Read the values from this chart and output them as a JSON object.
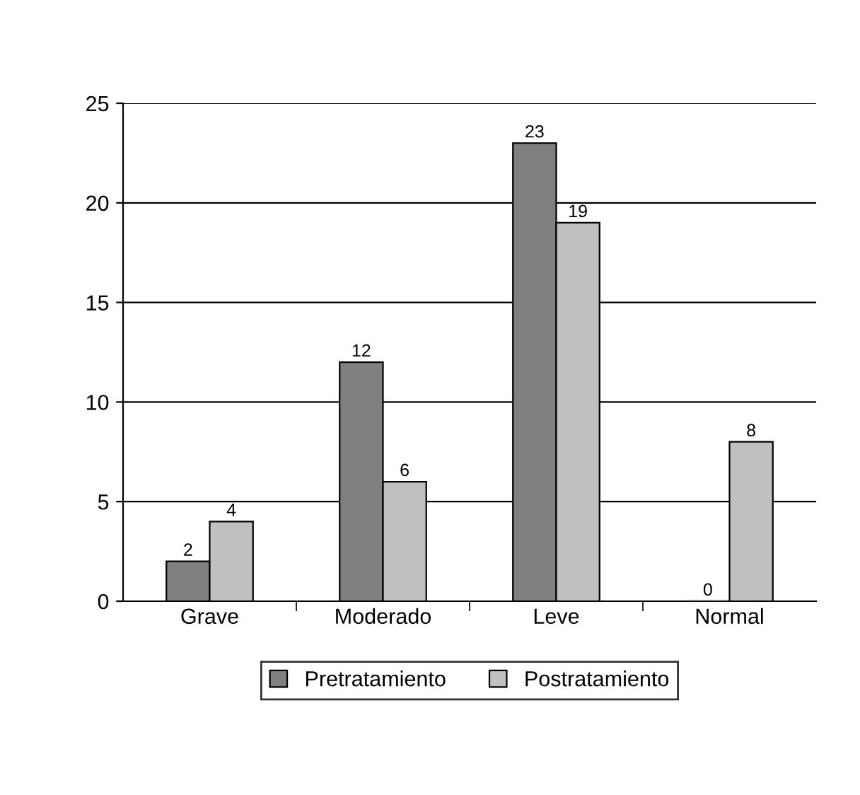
{
  "chart_data": {
    "type": "bar",
    "categories": [
      "Grave",
      "Moderado",
      "Leve",
      "Normal"
    ],
    "series": [
      {
        "name": "Pretratamiento",
        "color": "#808080",
        "values": [
          2,
          12,
          23,
          0
        ]
      },
      {
        "name": "Postratamiento",
        "color": "#c0c0c0",
        "values": [
          4,
          6,
          19,
          8
        ]
      }
    ],
    "ylim": [
      0,
      25
    ],
    "yticks": [
      0,
      5,
      10,
      15,
      20,
      25
    ],
    "grid": "y",
    "legend": "bottom",
    "data_labels": true
  }
}
